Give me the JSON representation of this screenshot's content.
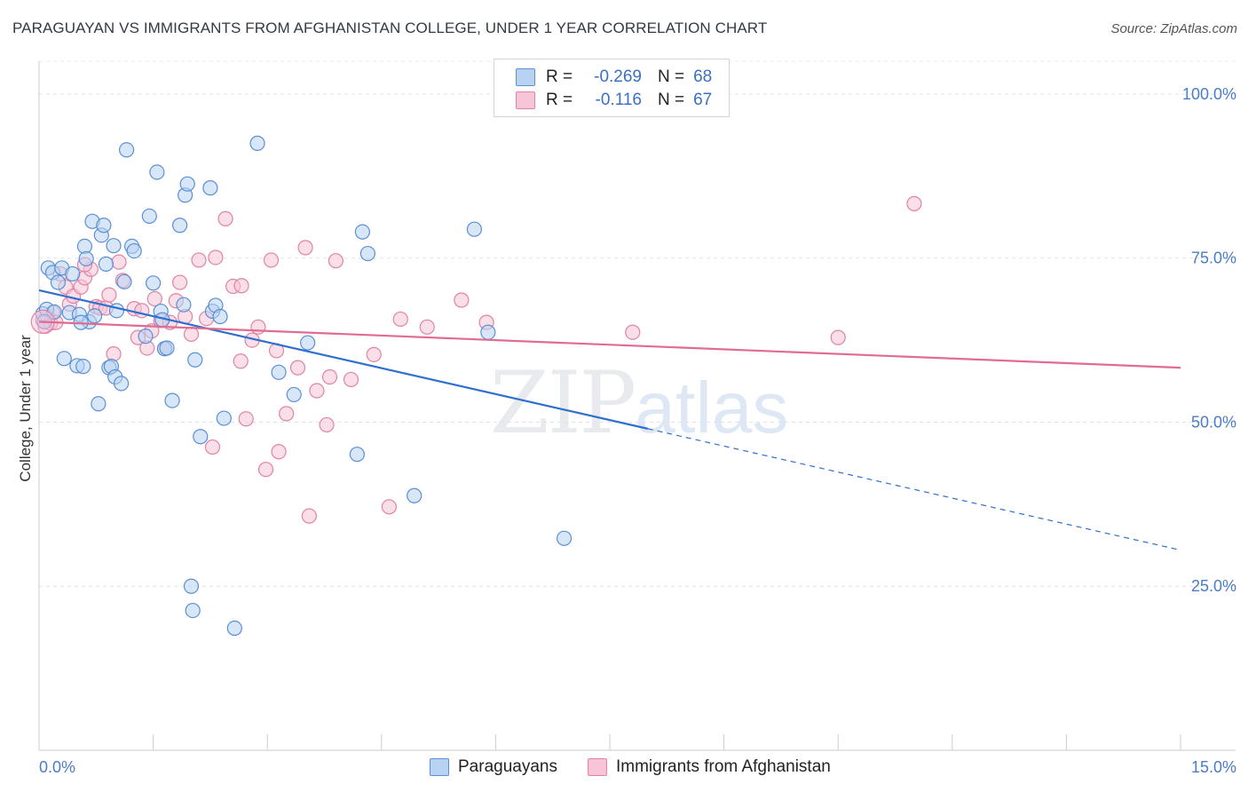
{
  "header": {
    "title": "PARAGUAYAN VS IMMIGRANTS FROM AFGHANISTAN COLLEGE, UNDER 1 YEAR CORRELATION CHART",
    "source": "Source: ZipAtlas.com"
  },
  "legend": {
    "r_label": "R =",
    "n_label": "N =",
    "series1": {
      "r": "-0.269",
      "n": "68"
    },
    "series2": {
      "r": "-0.116",
      "n": "67"
    }
  },
  "watermark": {
    "zip": "ZIP",
    "atlas": "atlas"
  },
  "chart_data": {
    "type": "scatter",
    "title": "PARAGUAYAN VS IMMIGRANTS FROM AFGHANISTAN COLLEGE, UNDER 1 YEAR CORRELATION CHART",
    "xlabel": "",
    "ylabel": "College, Under 1 year",
    "xlim": [
      0,
      15
    ],
    "ylim": [
      0,
      105
    ],
    "x_tick_labels": [
      "0.0%",
      "15.0%"
    ],
    "y_ticks": [
      25,
      50,
      75,
      100
    ],
    "y_tick_labels": [
      "25.0%",
      "50.0%",
      "75.0%",
      "100.0%"
    ],
    "colors": {
      "paraguayans_fill": "#b8d3f2",
      "paraguayans_stroke": "#5b8fd6",
      "paraguayans_line": "#2f6fcf",
      "afghan_fill": "#f8c4d6",
      "afghan_stroke": "#e083a6",
      "afghan_line": "#e06b93",
      "tick_text": "#4a7cc7"
    },
    "series": [
      {
        "name": "Paraguayans",
        "trend": {
          "x0": 0.0,
          "y0": 70.1,
          "x1": 8.0,
          "y1": 49.0,
          "dash_to_x": 15.0,
          "dash_to_y": 30.5
        },
        "points": [
          [
            0.05,
            66.5
          ],
          [
            0.1,
            67.2
          ],
          [
            0.12,
            73.5
          ],
          [
            0.18,
            72.8
          ],
          [
            0.25,
            71.3
          ],
          [
            0.3,
            73.5
          ],
          [
            0.33,
            59.7
          ],
          [
            0.4,
            66.7
          ],
          [
            0.44,
            72.6
          ],
          [
            0.5,
            58.6
          ],
          [
            0.53,
            66.4
          ],
          [
            0.58,
            58.5
          ],
          [
            0.6,
            76.8
          ],
          [
            0.62,
            74.9
          ],
          [
            0.66,
            65.3
          ],
          [
            0.7,
            80.6
          ],
          [
            0.73,
            66.2
          ],
          [
            0.78,
            52.8
          ],
          [
            0.82,
            78.5
          ],
          [
            0.85,
            80.0
          ],
          [
            0.88,
            74.1
          ],
          [
            0.92,
            58.3
          ],
          [
            0.95,
            58.5
          ],
          [
            0.98,
            76.9
          ],
          [
            1.0,
            56.9
          ],
          [
            1.02,
            67.0
          ],
          [
            1.08,
            55.9
          ],
          [
            1.12,
            71.4
          ],
          [
            1.15,
            91.5
          ],
          [
            1.22,
            76.8
          ],
          [
            1.25,
            76.1
          ],
          [
            1.45,
            81.4
          ],
          [
            1.5,
            71.2
          ],
          [
            1.55,
            88.1
          ],
          [
            1.6,
            66.9
          ],
          [
            1.62,
            65.6
          ],
          [
            1.65,
            61.2
          ],
          [
            1.68,
            61.3
          ],
          [
            1.75,
            53.3
          ],
          [
            1.85,
            80.0
          ],
          [
            1.9,
            67.9
          ],
          [
            1.92,
            84.6
          ],
          [
            1.95,
            86.3
          ],
          [
            2.05,
            59.5
          ],
          [
            2.12,
            47.8
          ],
          [
            2.25,
            85.7
          ],
          [
            2.28,
            66.9
          ],
          [
            2.32,
            67.8
          ],
          [
            2.38,
            66.1
          ],
          [
            2.43,
            50.6
          ],
          [
            2.87,
            92.5
          ],
          [
            3.15,
            57.6
          ],
          [
            3.35,
            54.2
          ],
          [
            3.53,
            62.1
          ],
          [
            4.18,
            45.1
          ],
          [
            4.25,
            79.0
          ],
          [
            4.32,
            75.7
          ],
          [
            4.93,
            38.8
          ],
          [
            5.72,
            79.4
          ],
          [
            5.9,
            63.7
          ],
          [
            6.9,
            32.3
          ],
          [
            2.0,
            25.0
          ],
          [
            2.02,
            21.3
          ],
          [
            2.57,
            18.6
          ],
          [
            0.07,
            65.3
          ],
          [
            0.2,
            66.8
          ],
          [
            0.55,
            65.2
          ],
          [
            1.4,
            63.1
          ]
        ]
      },
      {
        "name": "Immigrants from Afghanistan",
        "trend": {
          "x0": 0.0,
          "y0": 65.3,
          "x1": 15.0,
          "y1": 58.3
        },
        "points": [
          [
            0.05,
            65.5
          ],
          [
            0.08,
            64.6
          ],
          [
            0.12,
            66.0
          ],
          [
            0.15,
            65.1
          ],
          [
            0.18,
            66.7
          ],
          [
            0.22,
            65.2
          ],
          [
            0.28,
            72.6
          ],
          [
            0.35,
            70.6
          ],
          [
            0.4,
            68.0
          ],
          [
            0.45,
            69.2
          ],
          [
            0.55,
            70.6
          ],
          [
            0.6,
            72.0
          ],
          [
            0.68,
            73.3
          ],
          [
            0.75,
            67.6
          ],
          [
            0.8,
            67.4
          ],
          [
            0.88,
            67.4
          ],
          [
            0.92,
            69.4
          ],
          [
            0.98,
            60.4
          ],
          [
            1.05,
            74.4
          ],
          [
            1.1,
            71.6
          ],
          [
            1.25,
            67.3
          ],
          [
            1.3,
            62.9
          ],
          [
            1.35,
            67.0
          ],
          [
            1.42,
            61.3
          ],
          [
            1.48,
            63.9
          ],
          [
            1.52,
            68.8
          ],
          [
            1.6,
            65.5
          ],
          [
            1.65,
            61.2
          ],
          [
            1.72,
            65.2
          ],
          [
            1.8,
            68.5
          ],
          [
            1.85,
            71.3
          ],
          [
            1.92,
            66.1
          ],
          [
            2.0,
            63.4
          ],
          [
            2.1,
            74.7
          ],
          [
            2.2,
            65.8
          ],
          [
            2.28,
            46.2
          ],
          [
            2.32,
            75.1
          ],
          [
            2.45,
            81.0
          ],
          [
            2.55,
            70.7
          ],
          [
            2.65,
            59.3
          ],
          [
            2.72,
            50.5
          ],
          [
            2.8,
            62.5
          ],
          [
            2.88,
            64.5
          ],
          [
            2.98,
            42.8
          ],
          [
            3.05,
            74.7
          ],
          [
            3.15,
            45.5
          ],
          [
            3.25,
            51.3
          ],
          [
            3.4,
            58.3
          ],
          [
            3.5,
            76.6
          ],
          [
            3.55,
            35.7
          ],
          [
            3.65,
            54.8
          ],
          [
            3.78,
            49.6
          ],
          [
            3.82,
            56.9
          ],
          [
            3.9,
            74.6
          ],
          [
            4.1,
            56.5
          ],
          [
            4.4,
            60.3
          ],
          [
            4.6,
            37.1
          ],
          [
            4.75,
            65.7
          ],
          [
            5.1,
            64.5
          ],
          [
            5.55,
            68.6
          ],
          [
            5.88,
            65.2
          ],
          [
            7.8,
            63.7
          ],
          [
            10.5,
            62.9
          ],
          [
            11.5,
            83.3
          ],
          [
            0.6,
            74.0
          ],
          [
            2.66,
            70.8
          ],
          [
            3.12,
            60.9
          ]
        ]
      }
    ]
  },
  "bottom_legend": {
    "items": [
      {
        "label": "Paraguayans"
      },
      {
        "label": "Immigrants from Afghanistan"
      }
    ]
  }
}
